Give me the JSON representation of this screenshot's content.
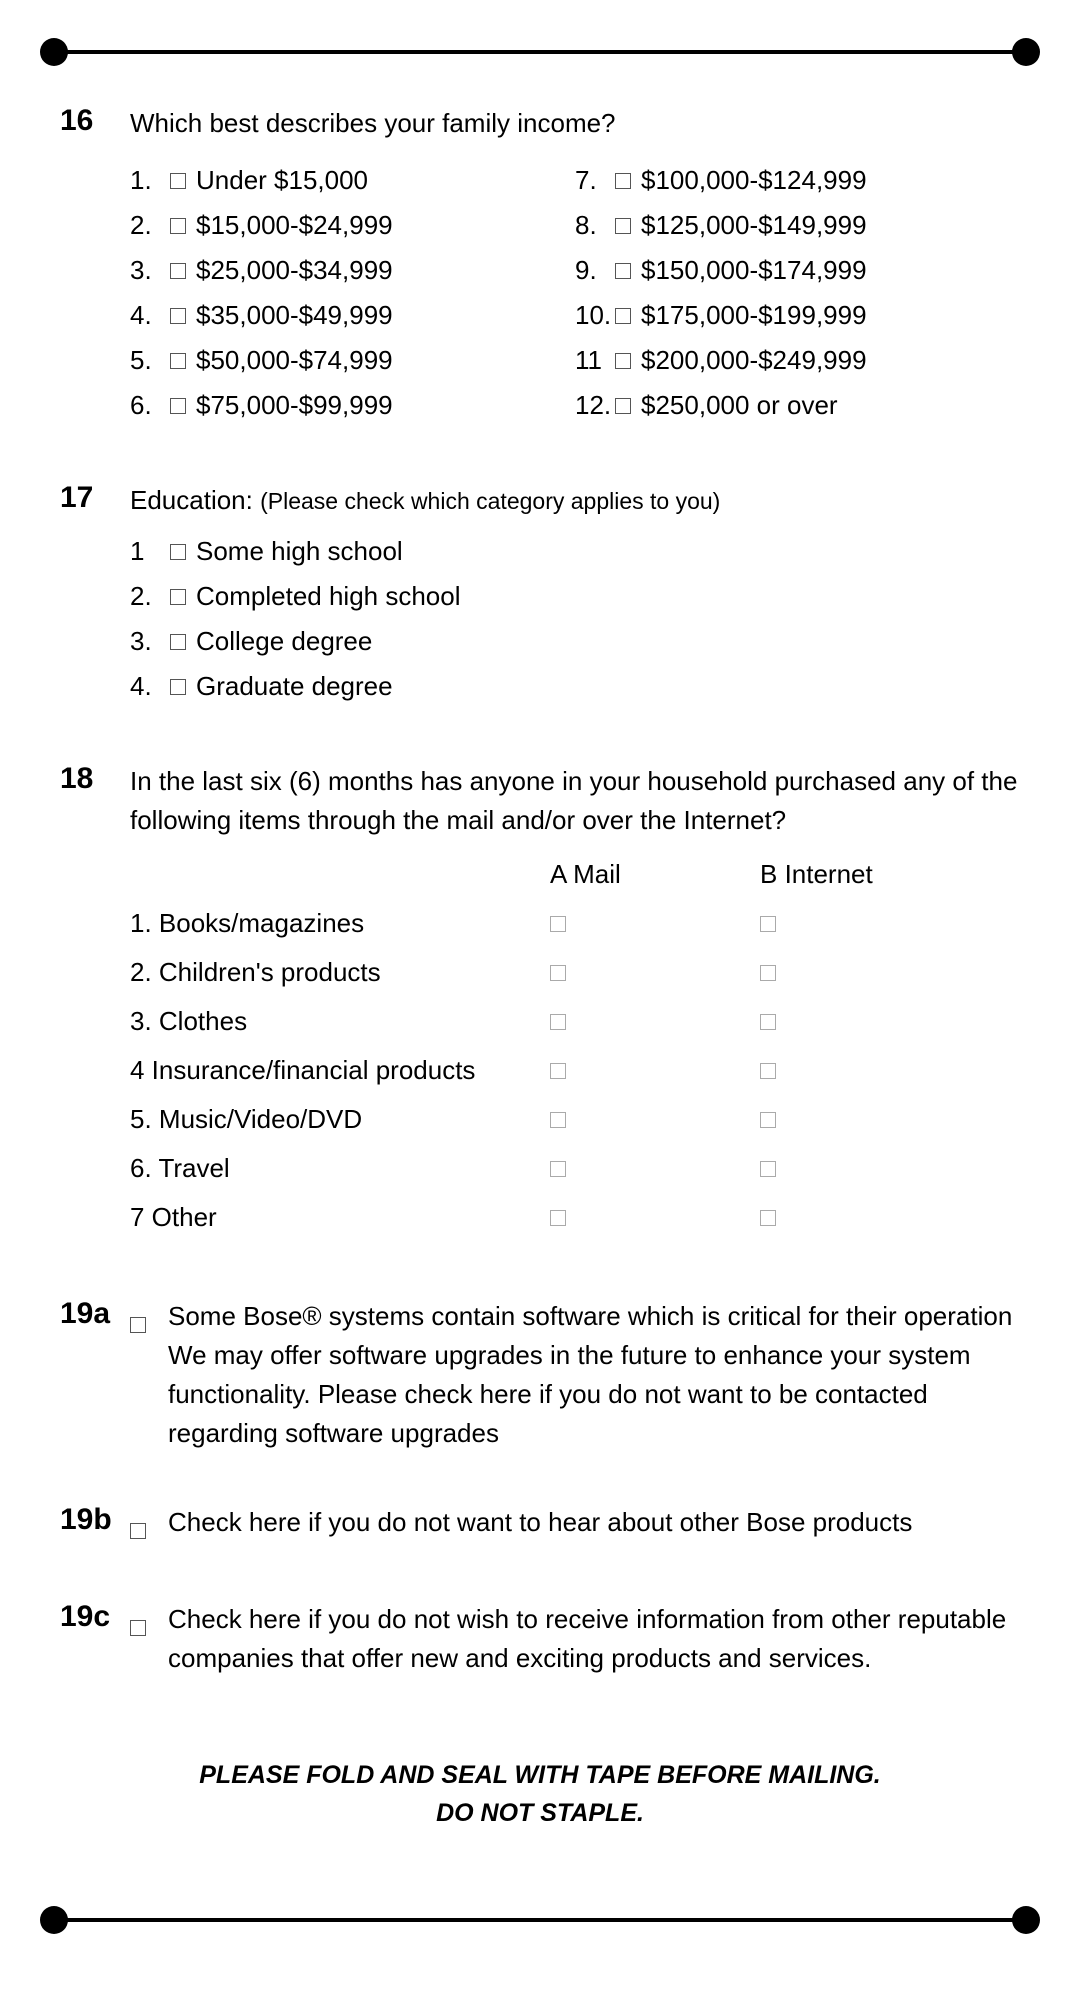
{
  "q16": {
    "num": "16",
    "text": "Which best describes your family income?",
    "left": [
      {
        "n": "1.",
        "label": "Under $15,000"
      },
      {
        "n": "2.",
        "label": "$15,000-$24,999"
      },
      {
        "n": "3.",
        "label": "$25,000-$34,999"
      },
      {
        "n": "4.",
        "label": "$35,000-$49,999"
      },
      {
        "n": "5.",
        "label": "$50,000-$74,999"
      },
      {
        "n": "6.",
        "label": "$75,000-$99,999"
      }
    ],
    "right": [
      {
        "n": "7.",
        "label": "$100,000-$124,999"
      },
      {
        "n": "8.",
        "label": "$125,000-$149,999"
      },
      {
        "n": "9.",
        "label": "$150,000-$174,999"
      },
      {
        "n": "10.",
        "label": "$175,000-$199,999"
      },
      {
        "n": "11",
        "label": "$200,000-$249,999"
      },
      {
        "n": "12.",
        "label": "$250,000 or over"
      }
    ]
  },
  "q17": {
    "num": "17",
    "text": "Education: ",
    "sub": "(Please check which category applies to you)",
    "opts": [
      {
        "n": "1",
        "label": "Some high school"
      },
      {
        "n": "2.",
        "label": "Completed high school"
      },
      {
        "n": "3.",
        "label": "College degree"
      },
      {
        "n": "4.",
        "label": "Graduate degree"
      }
    ]
  },
  "q18": {
    "num": "18",
    "text": "In the last six (6) months has anyone in your household purchased any of the following items through the mail and/or over the Internet?",
    "colA": "A  Mail",
    "colB": "B  Internet",
    "rows": [
      {
        "n": "1.",
        "label": "Books/magazines"
      },
      {
        "n": "2.",
        "label": "Children's products"
      },
      {
        "n": "3.",
        "label": "Clothes"
      },
      {
        "n": "4",
        "label": "Insurance/financial products"
      },
      {
        "n": "5.",
        "label": "Music/Video/DVD"
      },
      {
        "n": "6.",
        "label": "Travel"
      },
      {
        "n": "7",
        "label": "Other"
      }
    ]
  },
  "q19a": {
    "num": "19a",
    "text": "Some Bose® systems contain software which is critical for their operation We may offer software upgrades in the future to enhance your system functionality. Please check here if you do not want to be contacted regarding software upgrades"
  },
  "q19b": {
    "num": "19b",
    "text": "Check here if you do not want to hear about other Bose products"
  },
  "q19c": {
    "num": "19c",
    "text": "Check here if you do not wish to receive information from other reputable companies that offer new and exciting products and services."
  },
  "footer": {
    "line1": "PLEASE FOLD AND SEAL WITH TAPE BEFORE MAILING.",
    "line2": "DO NOT STAPLE."
  }
}
